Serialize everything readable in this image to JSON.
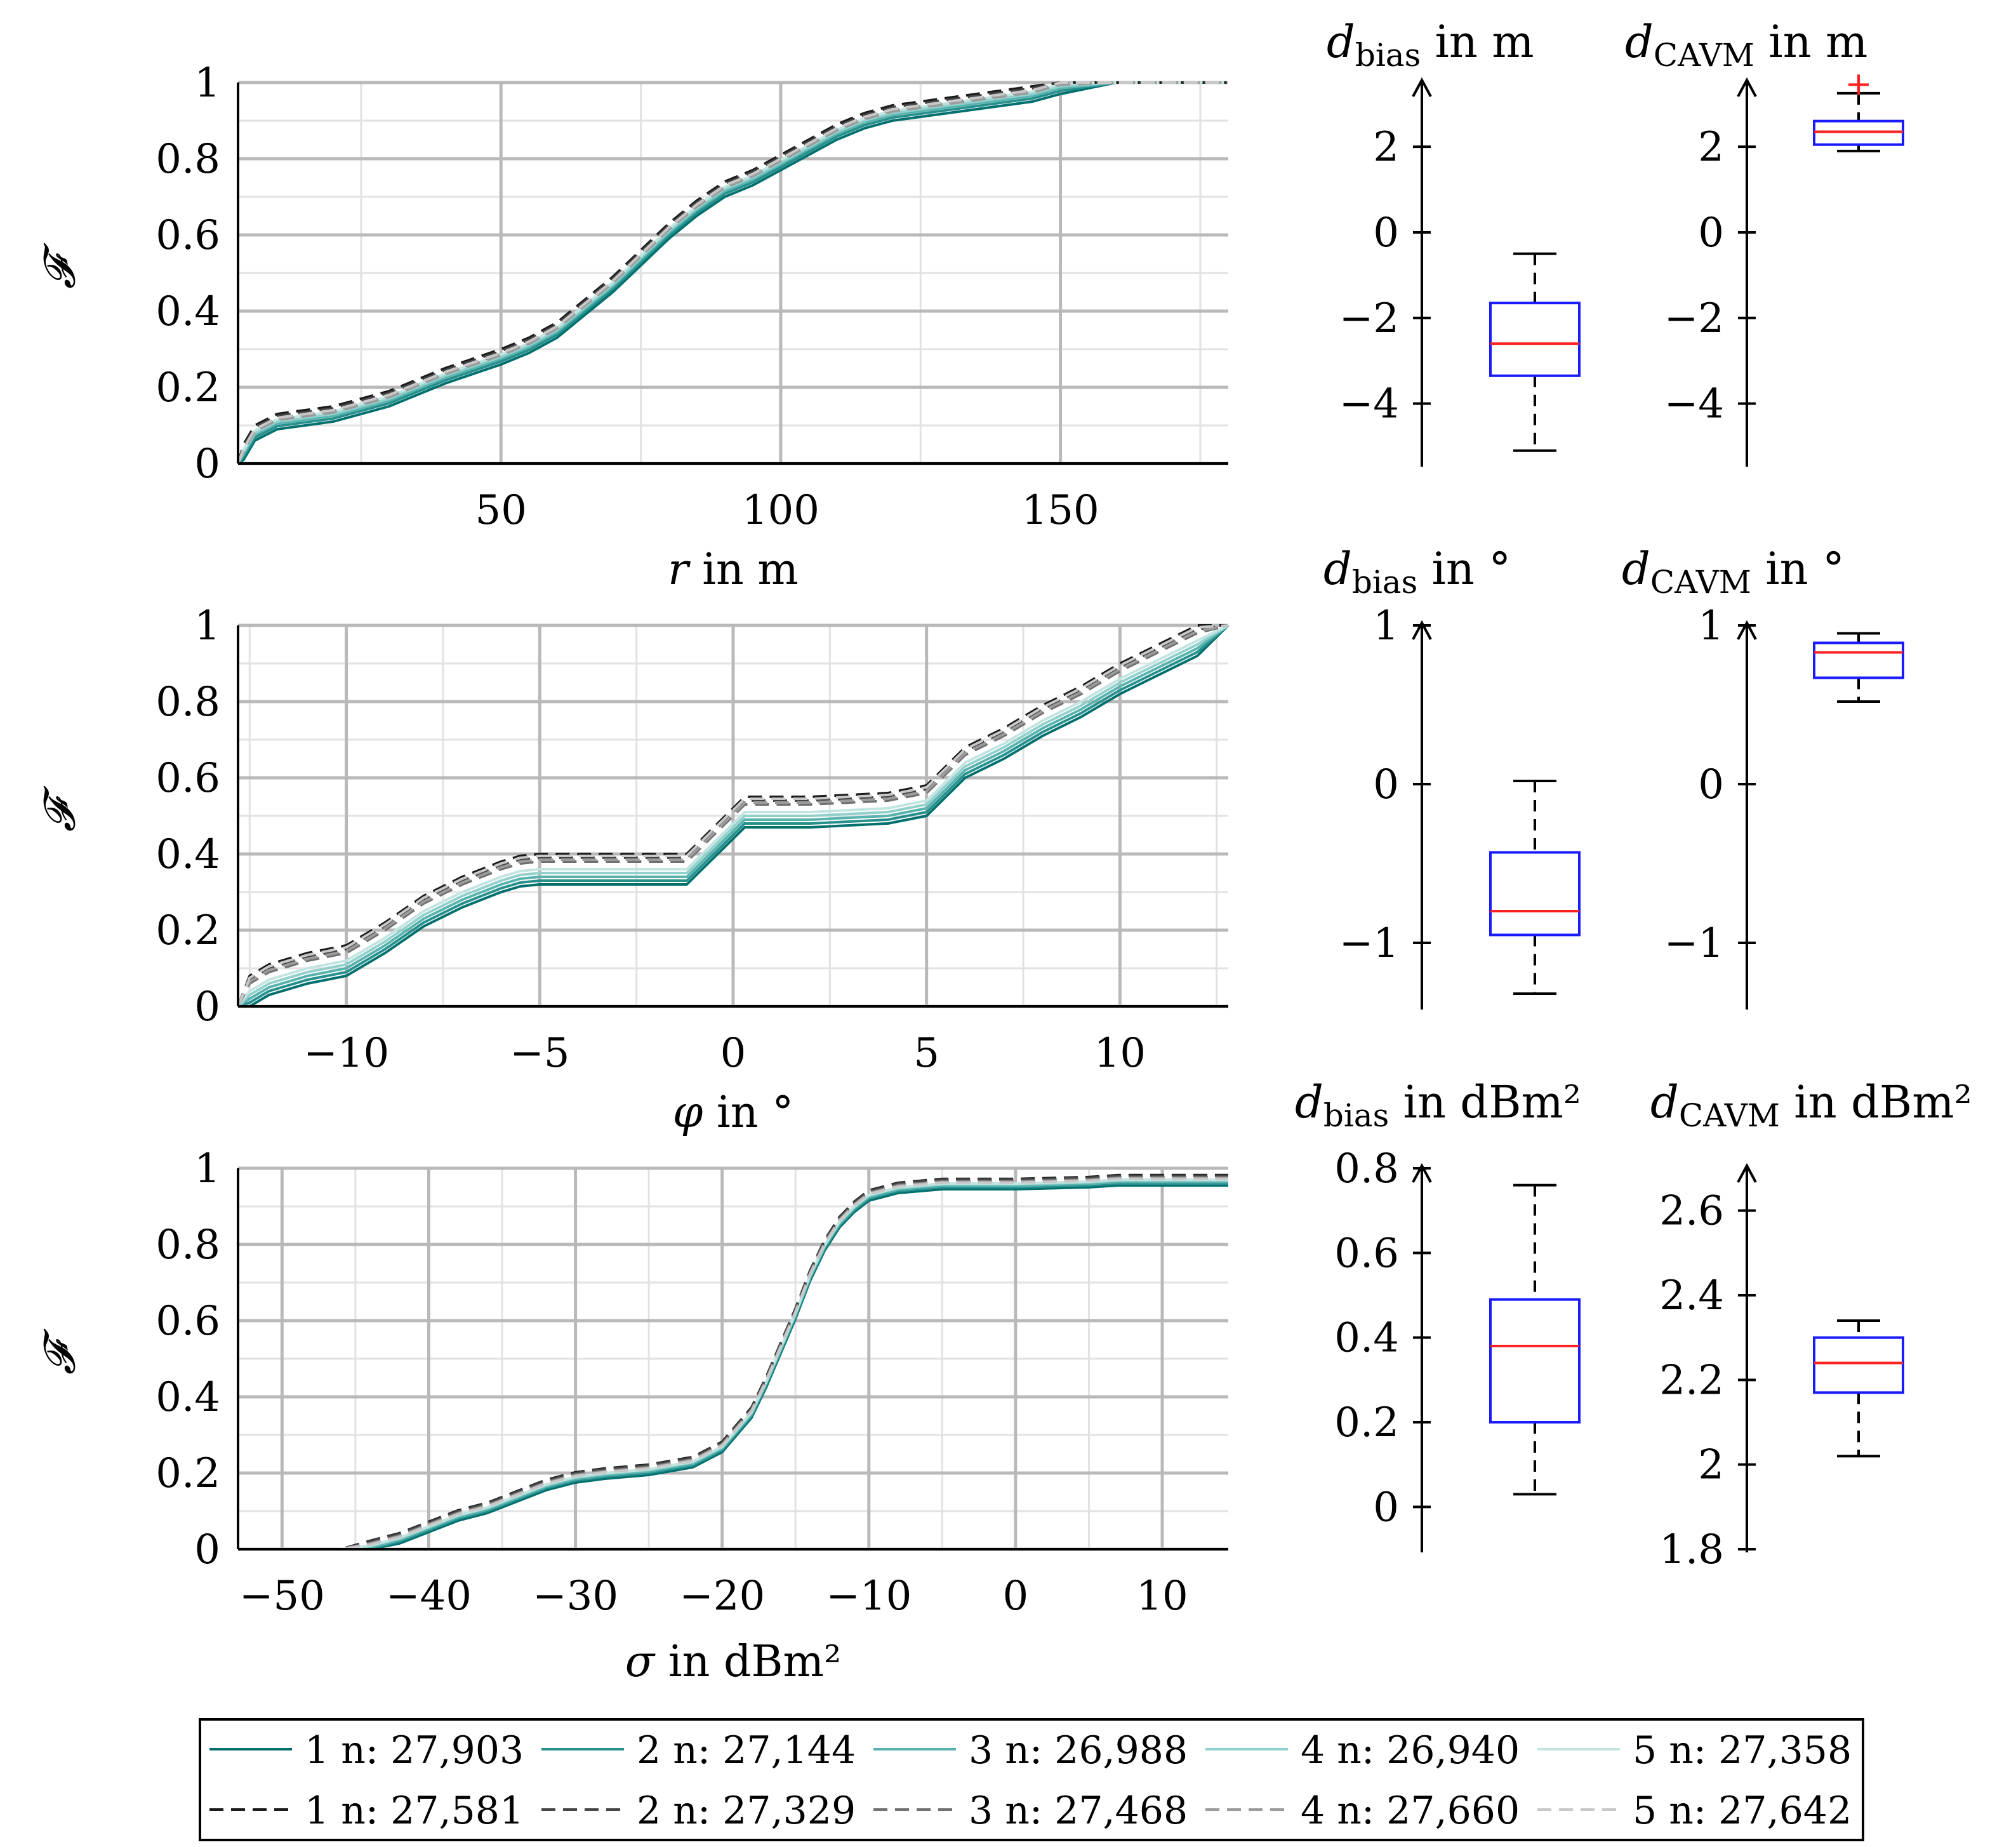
{
  "chart_data": {
    "type": "line",
    "legend": {
      "placement": "bottom",
      "rows": [
        [
          {
            "label": "1 n: 27,903",
            "color": "#00706F",
            "dashed": false
          },
          {
            "label": "2 n: 27,144",
            "color": "#27908D",
            "dashed": false
          },
          {
            "label": "3 n: 26,988",
            "color": "#58B3AF",
            "dashed": false
          },
          {
            "label": "4 n: 26,940",
            "color": "#92D0CC",
            "dashed": false
          },
          {
            "label": "5 n: 27,358",
            "color": "#C3E5E2",
            "dashed": false
          }
        ],
        [
          {
            "label": "1 n: 27,581",
            "color": "#1A1A1A",
            "dashed": true
          },
          {
            "label": "2 n: 27,329",
            "color": "#454545",
            "dashed": true
          },
          {
            "label": "3 n: 27,468",
            "color": "#707070",
            "dashed": true
          },
          {
            "label": "4 n: 27,660",
            "color": "#9B9B9B",
            "dashed": true
          },
          {
            "label": "5 n: 27,642",
            "color": "#C8C8C8",
            "dashed": true
          }
        ]
      ]
    },
    "panels": [
      {
        "id": "r",
        "type": "line",
        "ylabel": "𝓕",
        "xlabel_var": "r",
        "xlabel_unit": " in m",
        "xlim": [
          3,
          180
        ],
        "ylim": [
          0,
          1
        ],
        "xticks": [
          50,
          100,
          150
        ],
        "xtick_labels": [
          "50",
          "100",
          "150"
        ],
        "yticks": [
          0,
          0.2,
          0.4,
          0.6,
          0.8,
          1
        ],
        "ytick_labels": [
          "0",
          "0.2",
          "0.4",
          "0.6",
          "0.8",
          "1"
        ],
        "grid": true,
        "curve_x": [
          3,
          4,
          6,
          10,
          15,
          20,
          30,
          40,
          50,
          55,
          60,
          65,
          70,
          75,
          80,
          85,
          90,
          95,
          100,
          105,
          110,
          115,
          120,
          125,
          130,
          135,
          140,
          145,
          150,
          160,
          180
        ],
        "curve_y": [
          0,
          0.03,
          0.08,
          0.11,
          0.12,
          0.13,
          0.17,
          0.23,
          0.28,
          0.31,
          0.35,
          0.41,
          0.47,
          0.54,
          0.61,
          0.67,
          0.72,
          0.75,
          0.79,
          0.83,
          0.87,
          0.9,
          0.92,
          0.93,
          0.94,
          0.95,
          0.96,
          0.97,
          0.99,
          1.0,
          1.0
        ],
        "series_offsets": [
          -0.02,
          -0.012,
          -0.005,
          0.0,
          0.006,
          0.02,
          0.015,
          0.008,
          0.004,
          0.01
        ]
      },
      {
        "id": "phi",
        "type": "line",
        "ylabel": "𝓕",
        "xlabel_var": "φ",
        "xlabel_unit": " in °",
        "xlim": [
          -12.8,
          12.8
        ],
        "ylim": [
          0,
          1
        ],
        "xticks": [
          -10,
          -5,
          0,
          5,
          10
        ],
        "xtick_labels": [
          "−10",
          "−5",
          "0",
          "5",
          "10"
        ],
        "yticks": [
          0,
          0.2,
          0.4,
          0.6,
          0.8,
          1
        ],
        "ytick_labels": [
          "0",
          "0.2",
          "0.4",
          "0.6",
          "0.8",
          "1"
        ],
        "grid": true,
        "curve_x": [
          -12.8,
          -12.5,
          -12,
          -11,
          -10,
          -9,
          -8,
          -7,
          -6,
          -5.5,
          -5,
          -3,
          -1.2,
          -1,
          -0.5,
          0,
          0.3,
          2,
          4,
          5,
          5.5,
          6,
          7,
          8,
          9,
          10,
          11,
          12,
          12.8
        ],
        "curve_y": [
          0,
          0.03,
          0.06,
          0.09,
          0.11,
          0.17,
          0.24,
          0.29,
          0.33,
          0.345,
          0.35,
          0.35,
          0.35,
          0.37,
          0.42,
          0.47,
          0.5,
          0.5,
          0.51,
          0.53,
          0.58,
          0.63,
          0.68,
          0.74,
          0.79,
          0.85,
          0.9,
          0.95,
          1.0
        ],
        "series_offsets": [
          -0.03,
          -0.02,
          -0.01,
          0.0,
          0.01,
          0.05,
          0.04,
          0.03,
          0.035,
          0.045
        ]
      },
      {
        "id": "sigma",
        "type": "line",
        "ylabel": "𝓕",
        "xlabel_var": "σ",
        "xlabel_unit": " in dBm²",
        "xlim": [
          -53,
          14.5
        ],
        "ylim": [
          0,
          1
        ],
        "xticks": [
          -50,
          -40,
          -30,
          -20,
          -10,
          0,
          10
        ],
        "xtick_labels": [
          "−50",
          "−40",
          "−30",
          "−20",
          "−10",
          "0",
          "10"
        ],
        "yticks": [
          0,
          0.2,
          0.4,
          0.6,
          0.8,
          1
        ],
        "ytick_labels": [
          "0",
          "0.2",
          "0.4",
          "0.6",
          "0.8",
          "1"
        ],
        "grid": true,
        "curve_x": [
          -53,
          -46,
          -44,
          -42,
          -40,
          -38,
          -36,
          -34,
          -32,
          -30,
          -28,
          -25,
          -22,
          -20,
          -18,
          -17,
          -16,
          -15,
          -14,
          -13,
          -12,
          -11,
          -10,
          -8,
          -5,
          0,
          5,
          7,
          14.5
        ],
        "curve_y": [
          0,
          0,
          0.01,
          0.03,
          0.06,
          0.09,
          0.11,
          0.14,
          0.17,
          0.19,
          0.2,
          0.21,
          0.23,
          0.27,
          0.36,
          0.44,
          0.53,
          0.62,
          0.72,
          0.8,
          0.86,
          0.9,
          0.93,
          0.95,
          0.96,
          0.96,
          0.965,
          0.97,
          0.97
        ],
        "series_offsets": [
          -0.015,
          -0.01,
          -0.006,
          -0.002,
          0.0,
          0.012,
          0.01,
          0.006,
          0.004,
          0.002
        ]
      }
    ],
    "boxplots": [
      {
        "id": "bias-r",
        "title_var": "d",
        "title_sub": "bias",
        "title_unit": " in m",
        "ylim": [
          -5.4,
          3.5
        ],
        "yticks": [
          -4,
          -2,
          0,
          2
        ],
        "ytick_labels": [
          "−4",
          "−2",
          "0",
          "2"
        ],
        "whisker_low": -5.1,
        "q1": -3.35,
        "median": -2.6,
        "q3": -1.65,
        "whisker_high": -0.5,
        "outliers": []
      },
      {
        "id": "cavm-r",
        "title_var": "d",
        "title_sub": "CAVM",
        "title_unit": " in m",
        "ylim": [
          -5.4,
          3.5
        ],
        "yticks": [
          -4,
          -2,
          0,
          2
        ],
        "ytick_labels": [
          "−4",
          "−2",
          "0",
          "2"
        ],
        "whisker_low": 1.9,
        "q1": 2.05,
        "median": 2.35,
        "q3": 2.6,
        "whisker_high": 3.25,
        "outliers": [
          3.45
        ]
      },
      {
        "id": "bias-phi",
        "title_var": "d",
        "title_sub": "bias",
        "title_unit": " in °",
        "ylim": [
          -1.4,
          1.0
        ],
        "yticks": [
          -1,
          0,
          1
        ],
        "ytick_labels": [
          "−1",
          "0",
          "1"
        ],
        "whisker_low": -1.32,
        "q1": -0.95,
        "median": -0.8,
        "q3": -0.43,
        "whisker_high": 0.02,
        "outliers": []
      },
      {
        "id": "cavm-phi",
        "title_var": "d",
        "title_sub": "CAVM",
        "title_unit": " in °",
        "ylim": [
          -1.4,
          1.0
        ],
        "yticks": [
          -1,
          0,
          1
        ],
        "ytick_labels": [
          "−1",
          "0",
          "1"
        ],
        "whisker_low": 0.52,
        "q1": 0.67,
        "median": 0.83,
        "q3": 0.89,
        "whisker_high": 0.95,
        "outliers": []
      },
      {
        "id": "bias-sigma",
        "title_var": "d",
        "title_sub": "bias",
        "title_unit": " in dBm²",
        "ylim": [
          -0.1,
          0.8
        ],
        "yticks": [
          0,
          0.2,
          0.4,
          0.6,
          0.8
        ],
        "ytick_labels": [
          "0",
          "0.2",
          "0.4",
          "0.6",
          "0.8"
        ],
        "whisker_low": 0.03,
        "q1": 0.2,
        "median": 0.38,
        "q3": 0.49,
        "whisker_high": 0.76,
        "outliers": []
      },
      {
        "id": "cavm-sigma",
        "title_var": "d",
        "title_sub": "CAVM",
        "title_unit": " in dBm²",
        "ylim": [
          1.8,
          2.7
        ],
        "yticks": [
          1.8,
          2,
          2.2,
          2.4,
          2.6
        ],
        "ytick_labels": [
          "1.8",
          "2",
          "2.2",
          "2.4",
          "2.6"
        ],
        "whisker_low": 2.02,
        "q1": 2.17,
        "median": 2.24,
        "q3": 2.3,
        "whisker_high": 2.34,
        "outliers": []
      }
    ]
  }
}
